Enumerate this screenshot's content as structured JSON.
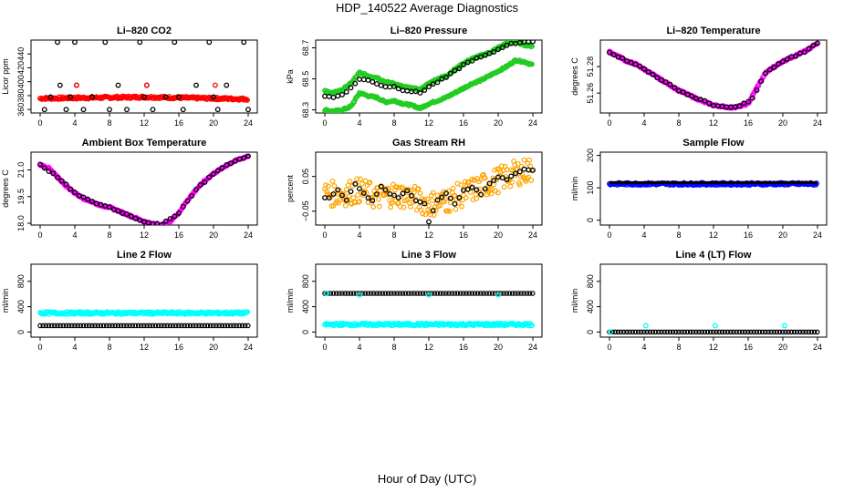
{
  "figure": {
    "title": "HDP_140522  Average Diagnostics",
    "xlabel": "Hour of Day (UTC)",
    "colors": {
      "black": "#000000",
      "red": "#ff0000",
      "green": "#22cc22",
      "magenta": "#ff00ff",
      "orange": "#ffa500",
      "blue": "#0000ff",
      "cyan": "#00ffff"
    }
  },
  "chart_data": [
    {
      "type": "scatter",
      "title": "Li–820 CO2",
      "ylabel": "Licor ppm",
      "xlim": [
        0,
        24
      ],
      "ylim": [
        355,
        460
      ],
      "xticks": [
        "0",
        "4",
        "8",
        "12",
        "16",
        "20",
        "24"
      ],
      "yticks": [
        "360",
        "380",
        "400",
        "420",
        "440"
      ],
      "series": [
        {
          "color": "red",
          "marker": "band",
          "x": [
            0,
            12,
            24
          ],
          "y": [
            376,
            378,
            375
          ]
        },
        {
          "color": "black",
          "marker": "circle",
          "x": [
            0.5,
            1.2,
            2.0,
            2.3,
            3.0,
            3.5,
            4.0,
            4.2,
            5.0,
            6.0,
            7.5,
            8.0,
            9.0,
            10.0,
            11.5,
            12.0,
            12.3,
            13.0,
            14.5,
            15.5,
            16.0,
            16.5,
            18.0,
            19.5,
            20.0,
            20.5,
            21.5,
            23.5,
            24.0
          ],
          "y": [
            360,
            378,
            457,
            395,
            360,
            378,
            457,
            395,
            360,
            378,
            457,
            360,
            395,
            360,
            457,
            378,
            395,
            360,
            378,
            457,
            378,
            360,
            395,
            457,
            378,
            360,
            395,
            457,
            360
          ]
        },
        {
          "color": "red",
          "marker": "circle",
          "x": [
            4.2,
            12.3,
            20.2
          ],
          "y": [
            395,
            395,
            395
          ]
        }
      ]
    },
    {
      "type": "scatter",
      "title": "Li–820 Pressure",
      "ylabel": "kPa",
      "xlim": [
        0,
        24
      ],
      "ylim": [
        68.28,
        68.75
      ],
      "xticks": [
        "0",
        "4",
        "8",
        "12",
        "16",
        "20",
        "24"
      ],
      "yticks": [
        "68.3",
        "68.5",
        "68.7"
      ],
      "series": [
        {
          "color": "green",
          "marker": "circle",
          "x": [
            0,
            1,
            2,
            3,
            4,
            5,
            6,
            7,
            8,
            9,
            10,
            11,
            12,
            13,
            14,
            15,
            16,
            17,
            18,
            19,
            20,
            21,
            22,
            23,
            24
          ],
          "y": [
            68.3,
            68.29,
            68.3,
            68.32,
            68.41,
            68.39,
            68.38,
            68.35,
            68.36,
            68.34,
            68.33,
            68.31,
            68.34,
            68.36,
            68.38,
            68.41,
            68.44,
            68.47,
            68.49,
            68.52,
            68.55,
            68.58,
            68.62,
            68.61,
            68.59
          ]
        },
        {
          "color": "green",
          "marker": "circle",
          "x": [
            0,
            1,
            2,
            3,
            4,
            5,
            6,
            7,
            8,
            9,
            10,
            11,
            12,
            13,
            14,
            15,
            16,
            17,
            18,
            19,
            20,
            21,
            22,
            23,
            24
          ],
          "y": [
            68.42,
            68.41,
            68.43,
            68.47,
            68.54,
            68.52,
            68.51,
            68.48,
            68.47,
            68.45,
            68.44,
            68.43,
            68.47,
            68.5,
            68.52,
            68.56,
            68.6,
            68.63,
            68.65,
            68.67,
            68.7,
            68.73,
            68.74,
            68.72,
            68.71
          ]
        },
        {
          "color": "black",
          "marker": "circle",
          "x": [
            0,
            1,
            2,
            3,
            4,
            5,
            6,
            7,
            8,
            9,
            10,
            11,
            12,
            13,
            14,
            15,
            16,
            17,
            18,
            19,
            20,
            21,
            22,
            23,
            24
          ],
          "y": [
            68.39,
            68.38,
            68.4,
            68.44,
            68.5,
            68.49,
            68.47,
            68.45,
            68.45,
            68.43,
            68.42,
            68.41,
            68.45,
            68.48,
            68.51,
            68.55,
            68.59,
            68.62,
            68.64,
            68.66,
            68.69,
            68.72,
            68.73,
            68.74,
            68.74
          ]
        }
      ]
    },
    {
      "type": "scatter",
      "title": "Li–820 Temperature",
      "ylabel": "degrees C",
      "xlim": [
        0,
        24
      ],
      "ylim": [
        51.245,
        51.3
      ],
      "xticks": [
        "0",
        "4",
        "8",
        "12",
        "16",
        "20",
        "24"
      ],
      "yticks": [
        "51.26",
        "51.28"
      ],
      "series": [
        {
          "color": "magenta",
          "marker": "circle",
          "x": [
            0,
            1,
            2,
            3,
            4,
            5,
            6,
            7,
            8,
            9,
            10,
            11,
            12,
            13,
            14,
            15,
            16,
            17,
            18,
            19,
            20,
            21,
            22,
            23,
            24
          ],
          "y": [
            51.291,
            51.288,
            51.284,
            51.282,
            51.278,
            51.274,
            51.27,
            51.266,
            51.262,
            51.259,
            51.256,
            51.253,
            51.251,
            51.25,
            51.249,
            51.25,
            51.252,
            51.264,
            51.275,
            51.28,
            51.284,
            51.287,
            51.29,
            51.293,
            51.298
          ]
        },
        {
          "color": "black",
          "marker": "circle",
          "x": [
            0,
            1.5,
            3,
            4.5,
            6,
            7.5,
            9,
            10.5,
            12,
            13.5,
            15,
            16.5,
            18,
            19.5,
            21,
            22.5,
            24
          ],
          "y": [
            51.291,
            51.286,
            51.282,
            51.276,
            51.27,
            51.264,
            51.259,
            51.255,
            51.251,
            51.249,
            51.25,
            51.256,
            51.275,
            51.282,
            51.287,
            51.291,
            51.298
          ]
        }
      ]
    },
    {
      "type": "scatter",
      "title": "Ambient Box Temperature",
      "ylabel": "degrees C",
      "xlim": [
        0,
        24
      ],
      "ylim": [
        17.9,
        22.0
      ],
      "xticks": [
        "0",
        "4",
        "8",
        "12",
        "16",
        "20",
        "24"
      ],
      "yticks": [
        "18.0",
        "19.5",
        "21.0"
      ],
      "series": [
        {
          "color": "magenta",
          "marker": "circle",
          "x": [
            0,
            1,
            2,
            3,
            4,
            5,
            6,
            7,
            8,
            9,
            10,
            11,
            12,
            13,
            14,
            15,
            16,
            17,
            18,
            19,
            20,
            21,
            22,
            23,
            24
          ],
          "y": [
            21.3,
            21.1,
            20.6,
            20.1,
            19.7,
            19.4,
            19.2,
            19.0,
            18.9,
            18.7,
            18.5,
            18.3,
            18.1,
            17.95,
            17.9,
            18.1,
            18.6,
            19.3,
            19.9,
            20.4,
            20.8,
            21.1,
            21.4,
            21.6,
            21.8
          ]
        },
        {
          "color": "black",
          "marker": "circle",
          "x": [
            0,
            2,
            4,
            6,
            8,
            10,
            12,
            14,
            16,
            18,
            20,
            22,
            24
          ],
          "y": [
            21.3,
            20.6,
            19.7,
            19.2,
            18.9,
            18.5,
            18.1,
            17.9,
            18.6,
            19.9,
            20.8,
            21.4,
            21.8
          ]
        }
      ]
    },
    {
      "type": "scatter",
      "title": "Gas Stream RH",
      "ylabel": "percent",
      "xlim": [
        0,
        24
      ],
      "ylim": [
        -0.09,
        0.12
      ],
      "xticks": [
        "0",
        "4",
        "8",
        "12",
        "16",
        "20",
        "24"
      ],
      "yticks": [
        "−0.05",
        "0.05"
      ],
      "series": [
        {
          "color": "orange",
          "marker": "band",
          "x": [
            0,
            2,
            4,
            6,
            8,
            10,
            12,
            14,
            16,
            18,
            20,
            22,
            24
          ],
          "y": [
            0.0,
            0.0,
            0.01,
            -0.01,
            0.0,
            -0.01,
            -0.03,
            -0.02,
            0.0,
            0.02,
            0.04,
            0.06,
            0.07
          ]
        },
        {
          "color": "black",
          "marker": "circle",
          "x": [
            0.5,
            1.5,
            2.5,
            3.5,
            4.5,
            5.5,
            6.5,
            7.5,
            8.5,
            9.5,
            10.5,
            11.5,
            12.0,
            13.0,
            14.0,
            15.0,
            16.0,
            17.0,
            18.0,
            19.0,
            20.0,
            21.0,
            22.0,
            23.0,
            24.0
          ],
          "y": [
            -0.01,
            0.01,
            -0.02,
            0.03,
            0.0,
            -0.02,
            0.02,
            0.0,
            -0.01,
            0.01,
            -0.02,
            -0.03,
            -0.08,
            -0.02,
            0.0,
            -0.03,
            0.01,
            0.02,
            0.0,
            0.03,
            0.05,
            0.04,
            0.06,
            0.07,
            0.07
          ]
        }
      ]
    },
    {
      "type": "scatter",
      "title": "Sample Flow",
      "ylabel": "ml/min",
      "xlim": [
        0,
        24
      ],
      "ylim": [
        -15,
        210
      ],
      "xticks": [
        "0",
        "4",
        "8",
        "12",
        "16",
        "20",
        "24"
      ],
      "yticks": [
        "0",
        "100",
        "200"
      ],
      "series": [
        {
          "color": "blue",
          "marker": "band",
          "x": [
            0,
            24
          ],
          "y": [
            112,
            112
          ]
        },
        {
          "color": "black",
          "marker": "line",
          "x": [
            0,
            24
          ],
          "y": [
            116,
            116
          ]
        }
      ]
    },
    {
      "type": "scatter",
      "title": "Line 2 Flow",
      "ylabel": "ml/min",
      "xlim": [
        0,
        24
      ],
      "ylim": [
        -80,
        1070
      ],
      "xticks": [
        "0",
        "4",
        "8",
        "12",
        "16",
        "20",
        "24"
      ],
      "yticks": [
        "0",
        "400",
        "800"
      ],
      "series": [
        {
          "color": "cyan",
          "marker": "band",
          "x": [
            0,
            24
          ],
          "y": [
            300,
            300
          ]
        },
        {
          "color": "black",
          "marker": "circle",
          "x": [
            0,
            24
          ],
          "y": [
            100,
            100
          ]
        }
      ]
    },
    {
      "type": "scatter",
      "title": "Line 3 Flow",
      "ylabel": "ml/min",
      "xlim": [
        0,
        24
      ],
      "ylim": [
        -80,
        1070
      ],
      "xticks": [
        "0",
        "4",
        "8",
        "12",
        "16",
        "20",
        "24"
      ],
      "yticks": [
        "0",
        "400",
        "800"
      ],
      "series": [
        {
          "color": "cyan",
          "marker": "band",
          "x": [
            0,
            24
          ],
          "y": [
            120,
            120
          ]
        },
        {
          "color": "black",
          "marker": "circle",
          "x": [
            0,
            24
          ],
          "y": [
            610,
            610
          ]
        },
        {
          "color": "cyan",
          "marker": "circle",
          "x": [
            0.2,
            4.0,
            12.0,
            20.0
          ],
          "y": [
            610,
            585,
            585,
            585
          ]
        }
      ]
    },
    {
      "type": "scatter",
      "title": "Line 4 (LT) Flow",
      "ylabel": "ml/min",
      "xlim": [
        0,
        24
      ],
      "ylim": [
        -80,
        1070
      ],
      "xticks": [
        "0",
        "4",
        "8",
        "12",
        "16",
        "20",
        "24"
      ],
      "yticks": [
        "0",
        "400",
        "800"
      ],
      "series": [
        {
          "color": "black",
          "marker": "circle",
          "x": [
            0,
            24
          ],
          "y": [
            0,
            0
          ]
        },
        {
          "color": "cyan",
          "marker": "circle",
          "x": [
            0.1,
            4.2,
            12.2,
            20.2
          ],
          "y": [
            0,
            100,
            100,
            100
          ]
        }
      ]
    }
  ]
}
